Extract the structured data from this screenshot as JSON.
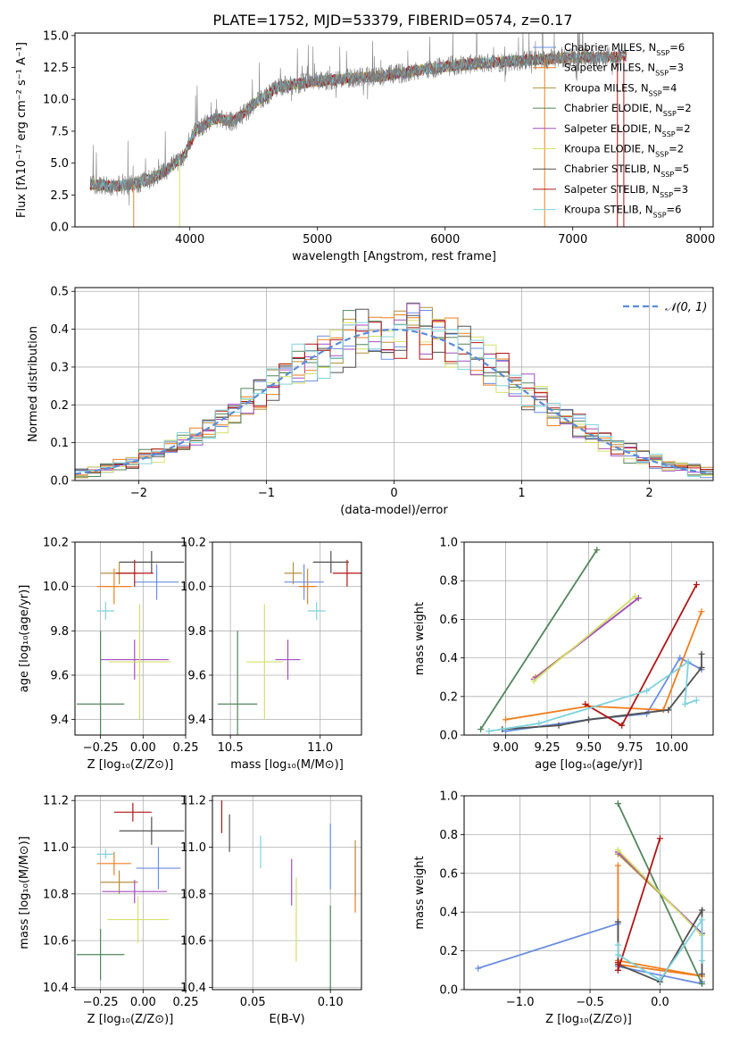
{
  "figure_title": "PLATE=1752, MJD=53379, FIBERID=0574, z=0.17",
  "models": [
    {
      "name": "Chabrier MILES",
      "nssp": "6",
      "color": "#6a8de0"
    },
    {
      "name": "Salpeter MILES",
      "nssp": "3",
      "color": "#f07e1e"
    },
    {
      "name": "Kroupa MILES",
      "nssp": "4",
      "color": "#b6903e"
    },
    {
      "name": "Chabrier ELODIE",
      "nssp": "2",
      "color": "#52865c"
    },
    {
      "name": "Salpeter ELODIE",
      "nssp": "2",
      "color": "#a34ec0"
    },
    {
      "name": "Kroupa ELODIE",
      "nssp": "2",
      "color": "#d4e06a"
    },
    {
      "name": "Chabrier STELIB",
      "nssp": "5",
      "color": "#505050"
    },
    {
      "name": "Salpeter STELIB",
      "nssp": "3",
      "color": "#b01616"
    },
    {
      "name": "Kroupa STELIB",
      "nssp": "6",
      "color": "#7fd2de"
    }
  ],
  "chart_data": [
    {
      "id": "spectrum",
      "type": "line",
      "xlabel": "wavelength [Angstrom, rest frame]",
      "ylabel": "Flux [fλ10⁻¹⁷ erg cm⁻² s⁻¹ A⁻¹]",
      "xlim": [
        3100,
        8100
      ],
      "ylim": [
        0,
        15.2
      ],
      "xticks": [
        4000,
        5000,
        6000,
        7000,
        8000
      ],
      "yticks": [
        "0.0",
        "2.5",
        "5.0",
        "7.5",
        "10.0",
        "12.5",
        "15.0"
      ],
      "grid": false,
      "legend": "top-right",
      "continuum": [
        [
          3250,
          3.3
        ],
        [
          3400,
          3.2
        ],
        [
          3550,
          3.3
        ],
        [
          3650,
          3.6
        ],
        [
          3800,
          4.3
        ],
        [
          3950,
          5.5
        ],
        [
          4050,
          7.6
        ],
        [
          4200,
          8.5
        ],
        [
          4350,
          8.3
        ],
        [
          4500,
          9.6
        ],
        [
          4700,
          11.0
        ],
        [
          4900,
          11.3
        ],
        [
          5100,
          11.5
        ],
        [
          5300,
          11.7
        ],
        [
          5500,
          11.8
        ],
        [
          5800,
          12.3
        ],
        [
          6100,
          12.7
        ],
        [
          6400,
          12.9
        ],
        [
          6700,
          13.1
        ],
        [
          7000,
          13.3
        ],
        [
          7300,
          13.3
        ],
        [
          7420,
          13.4
        ]
      ],
      "observed_range": [
        3220,
        7380
      ],
      "note_drops": [
        [
          3560,
          0
        ],
        [
          3920,
          0
        ],
        [
          6780,
          0
        ],
        [
          7350,
          0
        ],
        [
          7400,
          0
        ]
      ]
    },
    {
      "id": "residuals",
      "type": "histogram",
      "xlabel": "(data-model)/error",
      "ylabel": "Normed distribution",
      "xlim": [
        -2.5,
        2.5
      ],
      "ylim": [
        0,
        0.51
      ],
      "xticks": [
        "−2",
        "−1",
        "0",
        "1",
        "2"
      ],
      "yticks": [
        "0.0",
        "0.1",
        "0.2",
        "0.3",
        "0.4",
        "0.5"
      ],
      "grid": true,
      "legend": "top-right",
      "reference": {
        "name": "𝒩(0, 1)",
        "style": "dashed",
        "color": "#5b8bd8"
      },
      "bin_width": 0.1
    },
    {
      "id": "age_vs_Z",
      "type": "scatter",
      "xlabel": "Z [log₁₀(Z/Z⊙)]",
      "ylabel": "age  [log₁₀(age/yr)]",
      "xlim": [
        -0.4,
        0.25
      ],
      "ylim": [
        9.33,
        10.2
      ],
      "xticks": [
        "−0.25",
        "0.00",
        "0.25"
      ],
      "yticks": [
        "9.4",
        "9.6",
        "9.8",
        "10.0",
        "10.2"
      ],
      "grid": true,
      "points": [
        {
          "model": 0,
          "x": 0.08,
          "y": 10.02,
          "xe": 0.13,
          "ye": 0.08
        },
        {
          "model": 1,
          "x": -0.17,
          "y": 10.0,
          "xe": 0.1,
          "ye": 0.08
        },
        {
          "model": 2,
          "x": -0.14,
          "y": 10.06,
          "xe": 0.11,
          "ye": 0.05
        },
        {
          "model": 3,
          "x": -0.25,
          "y": 9.47,
          "xe": 0.14,
          "ye": 0.33
        },
        {
          "model": 4,
          "x": -0.05,
          "y": 9.67,
          "xe": 0.2,
          "ye": 0.09
        },
        {
          "model": 5,
          "x": -0.02,
          "y": 9.66,
          "xe": 0.18,
          "ye": 0.26
        },
        {
          "model": 6,
          "x": 0.05,
          "y": 10.11,
          "xe": 0.19,
          "ye": 0.05
        },
        {
          "model": 7,
          "x": -0.05,
          "y": 10.06,
          "xe": 0.11,
          "ye": 0.06
        },
        {
          "model": 8,
          "x": -0.22,
          "y": 9.89,
          "xe": 0.05,
          "ye": 0.04
        }
      ]
    },
    {
      "id": "age_vs_mass",
      "type": "scatter",
      "xlabel": "mass [log₁₀(M/M⊙)]",
      "ylabel": "",
      "xlim": [
        10.4,
        11.23
      ],
      "ylim": [
        9.33,
        10.2
      ],
      "xticks": [
        "10.5",
        "11.0"
      ],
      "yticks": [
        "9.4",
        "9.6",
        "9.8",
        "10.0",
        "10.2"
      ],
      "grid": true,
      "points": [
        {
          "model": 0,
          "x": 10.91,
          "y": 10.02,
          "xe": 0.11,
          "ye": 0.08
        },
        {
          "model": 1,
          "x": 10.93,
          "y": 10.0,
          "xe": 0.05,
          "ye": 0.08
        },
        {
          "model": 2,
          "x": 10.85,
          "y": 10.06,
          "xe": 0.05,
          "ye": 0.05
        },
        {
          "model": 3,
          "x": 10.54,
          "y": 9.47,
          "xe": 0.11,
          "ye": 0.33
        },
        {
          "model": 4,
          "x": 10.82,
          "y": 9.67,
          "xe": 0.07,
          "ye": 0.09
        },
        {
          "model": 5,
          "x": 10.69,
          "y": 9.66,
          "xe": 0.1,
          "ye": 0.26
        },
        {
          "model": 6,
          "x": 11.06,
          "y": 10.11,
          "xe": 0.1,
          "ye": 0.05
        },
        {
          "model": 7,
          "x": 11.15,
          "y": 10.06,
          "xe": 0.08,
          "ye": 0.06
        },
        {
          "model": 8,
          "x": 10.98,
          "y": 9.89,
          "xe": 0.05,
          "ye": 0.04
        }
      ]
    },
    {
      "id": "weight_vs_age",
      "type": "line",
      "xlabel": "age  [log₁₀(age/yr)]",
      "ylabel": "mass weight",
      "xlim": [
        8.75,
        10.25
      ],
      "ylim": [
        0,
        1.0
      ],
      "xticks": [
        "9.00",
        "9.25",
        "9.50",
        "9.75",
        "10.00"
      ],
      "yticks": [
        "0.0",
        "0.2",
        "0.4",
        "0.6",
        "0.8",
        "1.0"
      ],
      "grid": true,
      "series": [
        {
          "model": 0,
          "points": [
            [
              9.0,
              0.02
            ],
            [
              9.5,
              0.08
            ],
            [
              9.85,
              0.11
            ],
            [
              10.05,
              0.4
            ],
            [
              10.18,
              0.34
            ]
          ]
        },
        {
          "model": 1,
          "points": [
            [
              9.0,
              0.08
            ],
            [
              9.5,
              0.15
            ],
            [
              9.95,
              0.13
            ],
            [
              10.18,
              0.64
            ]
          ]
        },
        {
          "model": 2,
          "points": [
            [
              9.18,
              0.3
            ],
            [
              9.8,
              0.71
            ]
          ]
        },
        {
          "model": 3,
          "points": [
            [
              8.85,
              0.03
            ],
            [
              9.55,
              0.96
            ]
          ]
        },
        {
          "model": 4,
          "points": [
            [
              9.17,
              0.29
            ],
            [
              9.8,
              0.71
            ]
          ]
        },
        {
          "model": 5,
          "points": [
            [
              9.17,
              0.28
            ],
            [
              9.78,
              0.72
            ]
          ]
        },
        {
          "model": 6,
          "points": [
            [
              8.98,
              0.03
            ],
            [
              9.32,
              0.05
            ],
            [
              9.5,
              0.08
            ],
            [
              9.98,
              0.13
            ],
            [
              10.18,
              0.35
            ],
            [
              10.18,
              0.42
            ]
          ]
        },
        {
          "model": 7,
          "points": [
            [
              9.48,
              0.16
            ],
            [
              9.7,
              0.05
            ],
            [
              10.15,
              0.78
            ]
          ]
        },
        {
          "model": 8,
          "points": [
            [
              8.9,
              0.02
            ],
            [
              9.2,
              0.06
            ],
            [
              9.85,
              0.23
            ],
            [
              10.1,
              0.38
            ],
            [
              10.08,
              0.16
            ],
            [
              10.15,
              0.18
            ]
          ]
        }
      ]
    },
    {
      "id": "mass_vs_Z",
      "type": "scatter",
      "xlabel": "Z [log₁₀(Z/Z⊙)]",
      "ylabel": "mass [log₁₀(M/M⊙)]",
      "xlim": [
        -0.4,
        0.25
      ],
      "ylim": [
        10.39,
        11.22
      ],
      "xticks": [
        "−0.25",
        "0.00",
        "0.25"
      ],
      "yticks": [
        "10.4",
        "10.6",
        "10.8",
        "11.0",
        "11.2"
      ],
      "grid": true,
      "points": [
        {
          "model": 0,
          "x": 0.09,
          "y": 10.91,
          "xe": 0.13,
          "ye": 0.09
        },
        {
          "model": 1,
          "x": -0.17,
          "y": 10.93,
          "xe": 0.1,
          "ye": 0.05
        },
        {
          "model": 2,
          "x": -0.14,
          "y": 10.85,
          "xe": 0.11,
          "ye": 0.05
        },
        {
          "model": 3,
          "x": -0.25,
          "y": 10.54,
          "xe": 0.14,
          "ye": 0.11
        },
        {
          "model": 4,
          "x": -0.05,
          "y": 10.81,
          "xe": 0.19,
          "ye": 0.05
        },
        {
          "model": 5,
          "x": -0.03,
          "y": 10.69,
          "xe": 0.18,
          "ye": 0.1
        },
        {
          "model": 6,
          "x": 0.05,
          "y": 11.07,
          "xe": 0.19,
          "ye": 0.06
        },
        {
          "model": 7,
          "x": -0.06,
          "y": 11.15,
          "xe": 0.11,
          "ye": 0.04
        },
        {
          "model": 8,
          "x": -0.22,
          "y": 10.97,
          "xe": 0.05,
          "ye": 0.02
        }
      ]
    },
    {
      "id": "mass_vs_EBV",
      "type": "scatter",
      "xlabel": "E(B-V)",
      "ylabel": "",
      "xlim": [
        0.024,
        0.12
      ],
      "ylim": [
        10.39,
        11.22
      ],
      "xticks": [
        "0.05",
        "0.10"
      ],
      "yticks": [
        "10.4",
        "10.6",
        "10.8",
        "11.0",
        "11.2"
      ],
      "grid": true,
      "points": [
        {
          "model": 0,
          "x": 0.1,
          "y": 10.96,
          "xe": 0,
          "ye": 0.14
        },
        {
          "model": 1,
          "x": 0.116,
          "y": 10.86,
          "xe": 0,
          "ye": 0.14
        },
        {
          "model": 2,
          "x": 0.116,
          "y": 10.91,
          "xe": 0,
          "ye": 0.12
        },
        {
          "model": 3,
          "x": 0.1,
          "y": 10.57,
          "xe": 0,
          "ye": 0.18
        },
        {
          "model": 4,
          "x": 0.075,
          "y": 10.85,
          "xe": 0,
          "ye": 0.1
        },
        {
          "model": 5,
          "x": 0.078,
          "y": 10.69,
          "xe": 0,
          "ye": 0.18
        },
        {
          "model": 6,
          "x": 0.035,
          "y": 11.06,
          "xe": 0,
          "ye": 0.08
        },
        {
          "model": 7,
          "x": 0.03,
          "y": 11.13,
          "xe": 0,
          "ye": 0.07
        },
        {
          "model": 8,
          "x": 0.055,
          "y": 10.98,
          "xe": 0,
          "ye": 0.07
        }
      ]
    },
    {
      "id": "weight_vs_Z",
      "type": "line",
      "xlabel": "Z [log₁₀(Z/Z⊙)]",
      "ylabel": "mass weight",
      "xlim": [
        -1.4,
        0.38
      ],
      "ylim": [
        0,
        1.0
      ],
      "xticks": [
        "−1.0",
        "−0.5",
        "0.0"
      ],
      "xtick_values": [
        -1.0,
        -0.5,
        0.0
      ],
      "yticks": [
        "0.0",
        "0.2",
        "0.4",
        "0.6",
        "0.8",
        "1.0"
      ],
      "grid": true,
      "series": [
        {
          "model": 0,
          "points": [
            [
              -1.3,
              0.11
            ],
            [
              -0.3,
              0.34
            ],
            [
              -0.3,
              0.12
            ],
            [
              0.3,
              0.03
            ],
            [
              0.3,
              0.04
            ]
          ]
        },
        {
          "model": 1,
          "points": [
            [
              -0.3,
              0.64
            ],
            [
              -0.3,
              0.13
            ],
            [
              0.3,
              0.07
            ],
            [
              -0.3,
              0.15
            ]
          ]
        },
        {
          "model": 2,
          "points": [
            [
              -0.3,
              0.7
            ],
            [
              0.3,
              0.29
            ]
          ]
        },
        {
          "model": 3,
          "points": [
            [
              -0.3,
              0.96
            ],
            [
              0.3,
              0.03
            ]
          ]
        },
        {
          "model": 4,
          "points": [
            [
              -0.3,
              0.71
            ],
            [
              0.3,
              0.29
            ]
          ]
        },
        {
          "model": 5,
          "points": [
            [
              -0.3,
              0.72
            ],
            [
              0.3,
              0.28
            ]
          ]
        },
        {
          "model": 6,
          "points": [
            [
              -0.3,
              0.35
            ],
            [
              -0.3,
              0.13
            ],
            [
              0.0,
              0.04
            ],
            [
              0.3,
              0.41
            ],
            [
              0.3,
              0.08
            ]
          ]
        },
        {
          "model": 7,
          "points": [
            [
              -0.3,
              0.14
            ],
            [
              -0.3,
              0.1
            ],
            [
              0.0,
              0.78
            ]
          ]
        },
        {
          "model": 8,
          "points": [
            [
              -0.3,
              0.23
            ],
            [
              -0.3,
              0.18
            ],
            [
              0.0,
              0.05
            ],
            [
              0.3,
              0.36
            ],
            [
              0.3,
              0.15
            ]
          ]
        }
      ]
    }
  ]
}
